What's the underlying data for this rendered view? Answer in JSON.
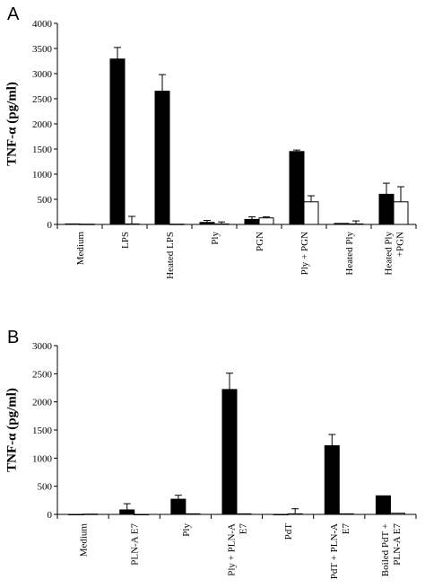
{
  "chart_data": [
    {
      "panel": "A",
      "type": "bar",
      "ylabel": "TNF-α (pg/ml)",
      "ylim": [
        0,
        4000
      ],
      "yticks": [
        0,
        500,
        1000,
        1500,
        2000,
        2500,
        3000,
        3500,
        4000
      ],
      "categories": [
        [
          "Medium"
        ],
        [
          "LPS"
        ],
        [
          "Heated LPS"
        ],
        [
          "Ply"
        ],
        [
          "PGN"
        ],
        [
          "Ply + PGN"
        ],
        [
          "Heated Ply"
        ],
        [
          "Heated Ply",
          "+PGN"
        ]
      ],
      "series": [
        {
          "color": "#000000",
          "values": [
            10,
            3290,
            2650,
            40,
            100,
            1450,
            20,
            600
          ],
          "errors": [
            0,
            230,
            330,
            40,
            50,
            30,
            0,
            220
          ]
        },
        {
          "color": "#ffffff",
          "values": [
            5,
            10,
            5,
            10,
            130,
            450,
            10,
            450
          ],
          "errors": [
            0,
            150,
            0,
            40,
            20,
            120,
            60,
            300
          ]
        }
      ]
    },
    {
      "panel": "B",
      "type": "bar",
      "ylabel": "TNF-α (pg/ml)",
      "ylim": [
        0,
        3000
      ],
      "yticks": [
        0,
        500,
        1000,
        1500,
        2000,
        2500,
        3000
      ],
      "categories": [
        [
          "Medium"
        ],
        [
          "PLN-A E7"
        ],
        [
          "Ply"
        ],
        [
          "Ply + PLN-A",
          "E7"
        ],
        [
          "PdT"
        ],
        [
          "PdT + PLN-A",
          "E7"
        ],
        [
          "Boiled PdT +",
          "PLN-A E7"
        ]
      ],
      "series": [
        {
          "color": "#000000",
          "values": [
            0,
            80,
            270,
            2220,
            0,
            1220,
            330
          ],
          "errors": [
            0,
            110,
            70,
            290,
            0,
            200,
            0
          ]
        },
        {
          "color": "#ffffff",
          "values": [
            5,
            0,
            10,
            10,
            10,
            10,
            20
          ],
          "errors": [
            0,
            0,
            0,
            0,
            90,
            0,
            0
          ]
        }
      ]
    }
  ]
}
